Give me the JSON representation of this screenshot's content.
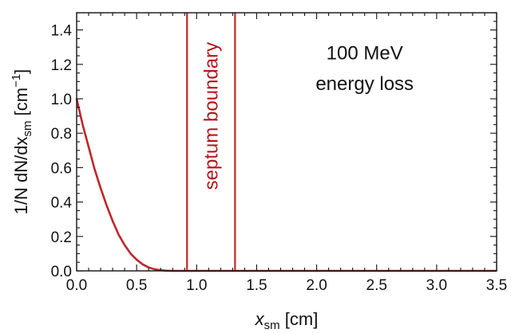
{
  "chart_data": {
    "type": "line",
    "xlim": [
      0,
      3.5
    ],
    "ylim": [
      0,
      1.5
    ],
    "x_ticks": [
      0.0,
      0.5,
      1.0,
      1.5,
      2.0,
      2.5,
      3.0,
      3.5
    ],
    "x_tick_labels": [
      "0.0",
      "0.5",
      "1.0",
      "1.5",
      "2.0",
      "2.5",
      "3.0",
      "3.5"
    ],
    "y_ticks": [
      0.0,
      0.2,
      0.4,
      0.6,
      0.8,
      1.0,
      1.2,
      1.4
    ],
    "y_tick_labels": [
      "0.0",
      "0.2",
      "0.4",
      "0.6",
      "0.8",
      "1.0",
      "1.2",
      "1.4"
    ],
    "xlabel": {
      "main": "x",
      "sub": "sm",
      "rest": " [cm]"
    },
    "ylabel": {
      "main": "1/N dN/dx",
      "sub": "sm",
      "rest": " [cm",
      "sup": "−1",
      "close": "]"
    },
    "grid": false,
    "series": [
      {
        "color": "#c0262b",
        "x": [
          0.0,
          0.05,
          0.1,
          0.15,
          0.2,
          0.25,
          0.3,
          0.35,
          0.4,
          0.45,
          0.5,
          0.55,
          0.6,
          0.65,
          0.7,
          0.75,
          0.8,
          0.85,
          0.9,
          3.5
        ],
        "y": [
          1.0,
          0.85,
          0.72,
          0.59,
          0.48,
          0.38,
          0.29,
          0.21,
          0.15,
          0.1,
          0.065,
          0.038,
          0.02,
          0.009,
          0.004,
          0.001,
          0.0,
          0.0,
          0.0,
          0.0
        ]
      }
    ],
    "vertical_lines": [
      {
        "x": 0.92,
        "color": "#c0262b"
      },
      {
        "x": 1.32,
        "color": "#c0262b"
      }
    ],
    "annotations": [
      {
        "text": "100 MeV",
        "x": 2.4,
        "y": 1.23
      },
      {
        "text": "energy loss",
        "x": 2.4,
        "y": 1.05
      }
    ],
    "region_label": {
      "text": "septum boundary",
      "x": 1.12,
      "y": 0.9,
      "rotation": -90,
      "color": "#b3161b"
    }
  }
}
